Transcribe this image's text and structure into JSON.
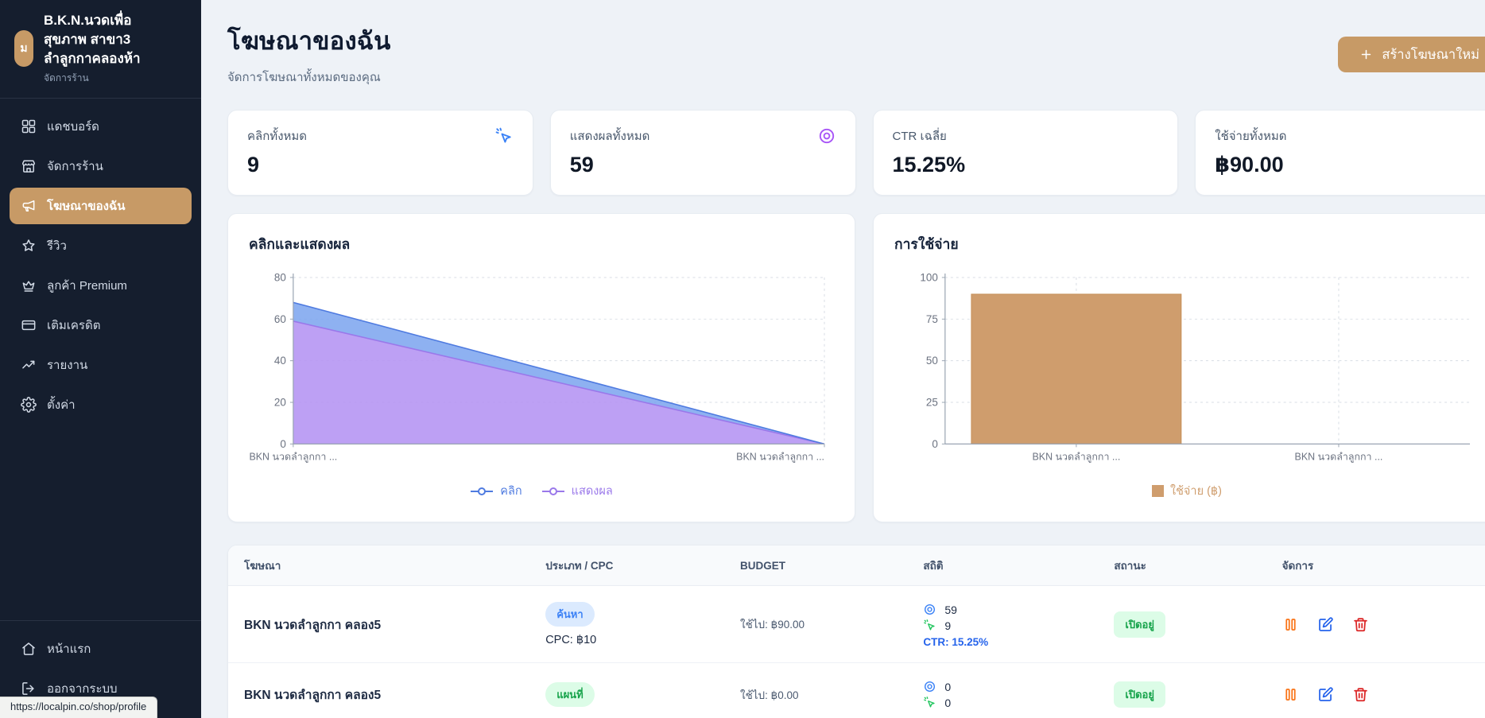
{
  "sidebar": {
    "shop": {
      "avatar_letter": "ม",
      "name": "B.K.N.นวดเพื่อสุขภาพ สาขา3 ลำลูกกาคลองห้า",
      "subtitle": "จัดการร้าน"
    },
    "items": [
      {
        "id": "dashboard",
        "icon": "dashboard-grid-icon",
        "label": "แดชบอร์ด",
        "active": false
      },
      {
        "id": "store",
        "icon": "store-icon",
        "label": "จัดการร้าน",
        "active": false
      },
      {
        "id": "my-ads",
        "icon": "megaphone-icon",
        "label": "โฆษณาของฉัน",
        "active": true
      },
      {
        "id": "reviews",
        "icon": "star-icon",
        "label": "รีวิว",
        "active": false
      },
      {
        "id": "premium",
        "icon": "crown-icon",
        "label": "ลูกค้า Premium",
        "active": false
      },
      {
        "id": "credits",
        "icon": "credit-card-icon",
        "label": "เติมเครดิต",
        "active": false
      },
      {
        "id": "reports",
        "icon": "trending-up-icon",
        "label": "รายงาน",
        "active": false
      },
      {
        "id": "settings",
        "icon": "gear-icon",
        "label": "ตั้งค่า",
        "active": false
      }
    ],
    "footer_items": [
      {
        "id": "home",
        "icon": "home-icon",
        "label": "หน้าแรก"
      },
      {
        "id": "logout",
        "icon": "logout-icon",
        "label": "ออกจากระบบ"
      }
    ]
  },
  "header": {
    "title": "โฆษณาของฉัน",
    "subtitle": "จัดการโฆษณาทั้งหมดของคุณ",
    "create_button_label": "สร้างโฆษณาใหม่"
  },
  "stats": [
    {
      "label": "คลิกทั้งหมด",
      "value": "9",
      "icon": "cursor-click-icon",
      "icon_color": "#3b82f6"
    },
    {
      "label": "แสดงผลทั้งหมด",
      "value": "59",
      "icon": "eye-icon",
      "icon_color": "#a855f7"
    },
    {
      "label": "CTR เฉลี่ย",
      "value": "15.25%",
      "icon": "",
      "icon_color": ""
    },
    {
      "label": "ใช้จ่ายทั้งหมด",
      "value": "฿90.00",
      "icon": "",
      "icon_color": ""
    }
  ],
  "chart_data": [
    {
      "type": "area",
      "title": "คลิกและแสดงผล",
      "categories": [
        "BKN นวดลำลูกกา ...",
        "BKN นวดลำลูกกา ..."
      ],
      "stacked": true,
      "series": [
        {
          "name": "คลิก",
          "values": [
            9,
            0
          ],
          "fill": "#7aa3ee",
          "line": "#4f7be0"
        },
        {
          "name": "แสดงผล",
          "values": [
            59,
            0
          ],
          "fill": "#b493f2",
          "line": "#9a78ea"
        }
      ],
      "ylim": [
        0,
        80
      ],
      "yticks": [
        0,
        20,
        40,
        60,
        80
      ],
      "grid": true,
      "legend_position": "bottom"
    },
    {
      "type": "bar",
      "title": "การใช้จ่าย",
      "categories": [
        "BKN นวดลำลูกกา ...",
        "BKN นวดลำลูกกา ..."
      ],
      "series": [
        {
          "name": "ใช้จ่าย (฿)",
          "values": [
            90,
            0
          ],
          "fill": "#cf9d6d",
          "line": "#c2884f"
        }
      ],
      "ylim": [
        0,
        100
      ],
      "yticks": [
        0,
        25,
        50,
        75,
        100
      ],
      "grid": true,
      "legend_position": "bottom"
    }
  ],
  "table": {
    "headers": [
      "โฆษณา",
      "ประเภท / CPC",
      "BUDGET",
      "สถิติ",
      "สถานะ",
      "จัดการ"
    ],
    "rows": [
      {
        "name": "BKN นวดลำลูกกา คลอง5",
        "type_badge": "ค้นหา",
        "type_badge_style": "blue",
        "cpc": "CPC: ฿10",
        "budget": "ใช้ไป: ฿90.00",
        "impressions": "59",
        "clicks": "9",
        "ctr": "CTR: 15.25%",
        "status": "เปิดอยู่"
      },
      {
        "name": "BKN นวดลำลูกกา คลอง5",
        "type_badge": "แผนที่",
        "type_badge_style": "green",
        "cpc": "",
        "budget": "ใช้ไป: ฿0.00",
        "impressions": "0",
        "clicks": "0",
        "ctr": "",
        "status": "เปิดอยู่"
      }
    ]
  },
  "statusbar": {
    "url": "https://localpin.co/shop/profile"
  },
  "colors": {
    "accent_tan": "#c79a66",
    "sidebar_bg": "#151e2e",
    "page_bg": "#eef2f7",
    "blue": "#3b82f6",
    "purple": "#a855f7",
    "green": "#16a34a",
    "orange": "#f97316",
    "red": "#dc2626"
  }
}
